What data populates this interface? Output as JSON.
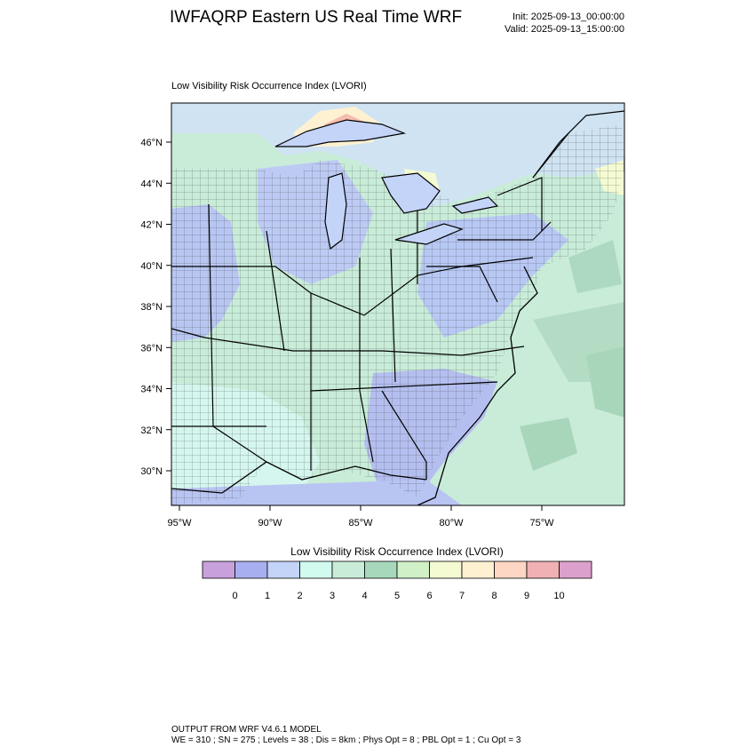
{
  "header": {
    "title": "IWFAQRP Eastern US Real Time WRF",
    "init": "Init: 2025-09-13_00:00:00",
    "valid": "Valid: 2025-09-13_15:00:00"
  },
  "plot": {
    "title": "Low Visibility Risk Occurrence Index   (LVORI)"
  },
  "map": {
    "lat_ticks": [
      "46°N",
      "44°N",
      "42°N",
      "40°N",
      "38°N",
      "36°N",
      "34°N",
      "32°N",
      "30°N"
    ],
    "lon_ticks": [
      "95°W",
      "90°W",
      "85°W",
      "80°W",
      "75°W"
    ]
  },
  "colorbar": {
    "title": "Low Visibility Risk Occurrence Index  (LVORI)",
    "labels": [
      "0",
      "1",
      "2",
      "3",
      "4",
      "5",
      "6",
      "7",
      "8",
      "9",
      "10"
    ],
    "colors": [
      "#c8a0dc",
      "#a8aff0",
      "#c4d4f8",
      "#d2fbf0",
      "#c8ecd8",
      "#a8d8bc",
      "#d0f0c8",
      "#f4fbd2",
      "#fdf1d2",
      "#fdd6c4",
      "#f0b0b4",
      "#dca0cc"
    ]
  },
  "footer": {
    "line1": "OUTPUT FROM WRF V4.6.1 MODEL",
    "line2": "WE = 310 ; SN = 275 ; Levels = 38 ; Dis = 8km ; Phys Opt = 8 ; PBL Opt = 1 ; Cu Opt = 3"
  }
}
